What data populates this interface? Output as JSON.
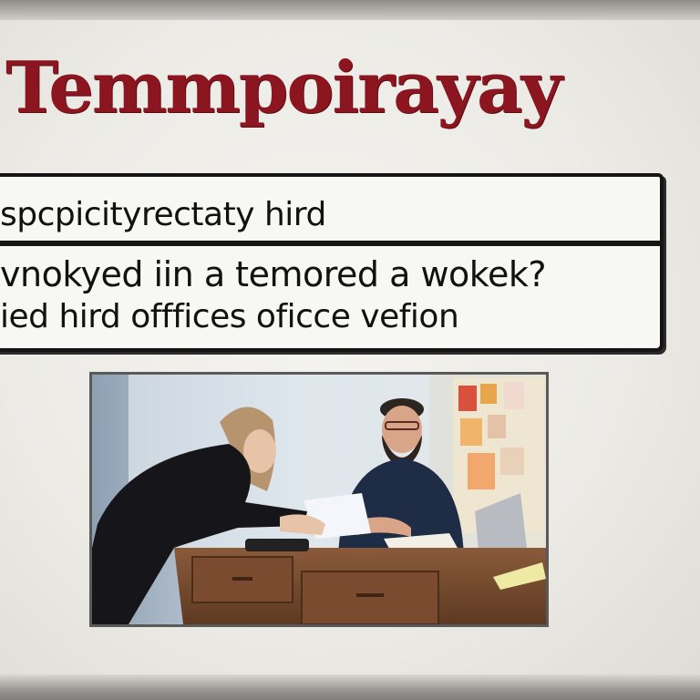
{
  "slide": {
    "title": "Temmpoirayay",
    "sign_lines": [
      "spcpicityrectaty hird",
      "vnokyed iin a temored a wokek?",
      "ied hird offfices oficce vefion"
    ]
  },
  "photo": {
    "scene": "office-meeting-photo"
  },
  "colors": {
    "title": "#8b1620",
    "sign_border": "#141414",
    "background": "#ecebe6"
  }
}
